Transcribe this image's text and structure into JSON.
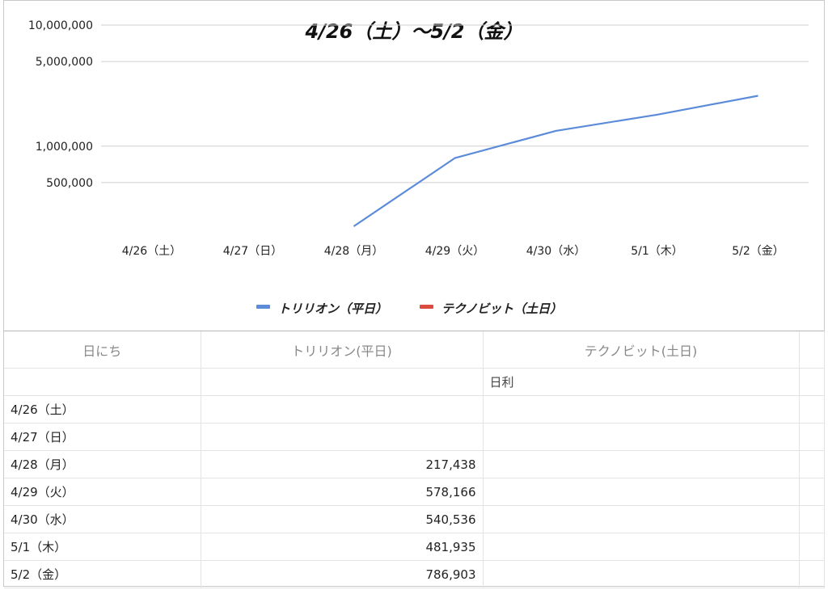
{
  "chart_data": {
    "type": "line",
    "title": "4/26（土）〜5/2（金）",
    "categories": [
      "4/26（土）",
      "4/27（日）",
      "4/28（月）",
      "4/29（火）",
      "4/30（水）",
      "5/1（木）",
      "5/2（金）"
    ],
    "y_scale": "log",
    "y_ticks": [
      "10,000,000",
      "5,000,000",
      "1,000,000",
      "500,000"
    ],
    "y_tick_values": [
      10000000,
      5000000,
      1000000,
      500000
    ],
    "ylim": [
      170000,
      10000000
    ],
    "grid": true,
    "legend_position": "bottom",
    "series": [
      {
        "name": "トリリオン（平日）",
        "color": "#5b8bd9",
        "values": [
          null,
          null,
          217438,
          795604,
          1336140,
          1818075,
          2604978
        ]
      },
      {
        "name": "テクノビット（土日）",
        "color": "#db4b3f",
        "values": [
          null,
          null,
          null,
          null,
          null,
          null,
          null
        ]
      }
    ]
  },
  "table": {
    "headers": [
      "日にち",
      "トリリオン(平日)",
      "テクノビット(土日)"
    ],
    "sub_label": "日利",
    "rows": [
      {
        "date": "4/26（土）",
        "trillion": "",
        "technobit": ""
      },
      {
        "date": "4/27（日）",
        "trillion": "",
        "technobit": ""
      },
      {
        "date": "4/28（月）",
        "trillion": "217,438",
        "technobit": ""
      },
      {
        "date": "4/29（火）",
        "trillion": "578,166",
        "technobit": ""
      },
      {
        "date": "4/30（水）",
        "trillion": "540,536",
        "technobit": ""
      },
      {
        "date": "5/1（木）",
        "trillion": "481,935",
        "technobit": ""
      },
      {
        "date": "5/2（金）",
        "trillion": "786,903",
        "technobit": ""
      }
    ]
  }
}
